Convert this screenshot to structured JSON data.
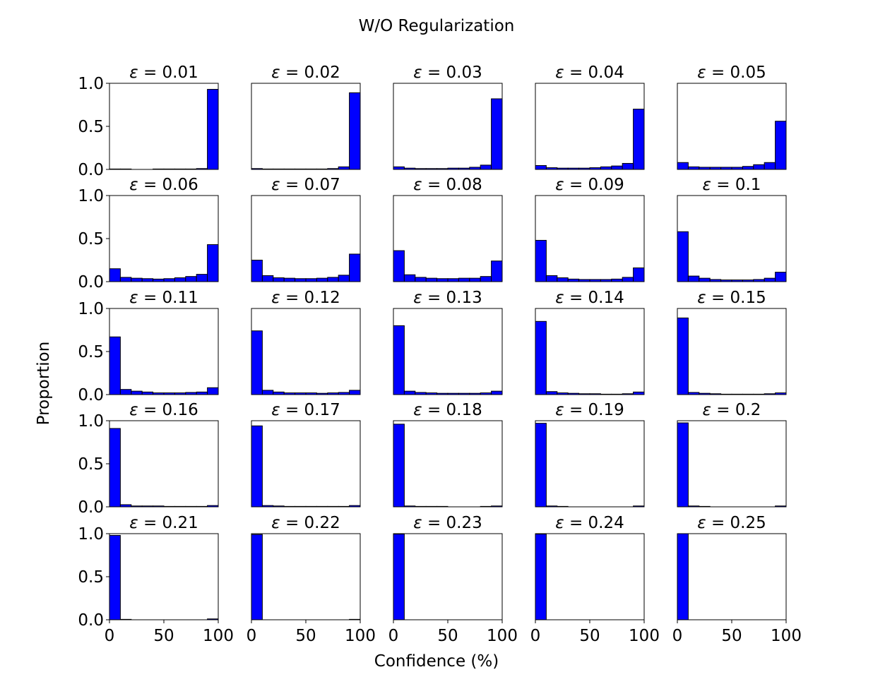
{
  "chart_data": {
    "type": "bar",
    "suptitle": "W/O Regularization",
    "xlabel": "Confidence (%)",
    "ylabel": "Proportion",
    "xlim": [
      0,
      100
    ],
    "ylim": [
      0,
      1.0
    ],
    "x_ticks": [
      0,
      50,
      100
    ],
    "y_ticks": [
      "0.0",
      "0.5",
      "1.0"
    ],
    "bin_width": 10,
    "bins": [
      "0-10",
      "10-20",
      "20-30",
      "30-40",
      "40-50",
      "50-60",
      "60-70",
      "70-80",
      "80-90",
      "90-100"
    ],
    "bar_color": "#0000ff",
    "edge_color": "#000000",
    "panels": [
      {
        "eps": "0.01",
        "values": [
          0.005,
          0.005,
          0.0,
          0.0,
          0.005,
          0.005,
          0.005,
          0.005,
          0.01,
          0.93
        ]
      },
      {
        "eps": "0.02",
        "values": [
          0.01,
          0.005,
          0.005,
          0.005,
          0.005,
          0.005,
          0.005,
          0.01,
          0.03,
          0.89
        ]
      },
      {
        "eps": "0.03",
        "values": [
          0.03,
          0.015,
          0.01,
          0.01,
          0.01,
          0.015,
          0.015,
          0.025,
          0.05,
          0.82
        ]
      },
      {
        "eps": "0.04",
        "values": [
          0.045,
          0.02,
          0.015,
          0.015,
          0.015,
          0.02,
          0.03,
          0.04,
          0.07,
          0.7
        ]
      },
      {
        "eps": "0.05",
        "values": [
          0.08,
          0.03,
          0.025,
          0.025,
          0.025,
          0.025,
          0.035,
          0.055,
          0.08,
          0.56
        ]
      },
      {
        "eps": "0.06",
        "values": [
          0.15,
          0.05,
          0.04,
          0.035,
          0.03,
          0.035,
          0.045,
          0.06,
          0.085,
          0.43
        ]
      },
      {
        "eps": "0.07",
        "values": [
          0.25,
          0.07,
          0.045,
          0.04,
          0.035,
          0.035,
          0.04,
          0.05,
          0.075,
          0.32
        ]
      },
      {
        "eps": "0.08",
        "values": [
          0.36,
          0.08,
          0.05,
          0.04,
          0.035,
          0.035,
          0.04,
          0.04,
          0.06,
          0.24
        ]
      },
      {
        "eps": "0.09",
        "values": [
          0.48,
          0.07,
          0.045,
          0.03,
          0.025,
          0.025,
          0.025,
          0.03,
          0.05,
          0.16
        ]
      },
      {
        "eps": "0.1",
        "values": [
          0.58,
          0.065,
          0.04,
          0.025,
          0.02,
          0.02,
          0.02,
          0.025,
          0.04,
          0.11
        ]
      },
      {
        "eps": "0.11",
        "values": [
          0.67,
          0.06,
          0.04,
          0.03,
          0.02,
          0.02,
          0.02,
          0.025,
          0.03,
          0.08
        ]
      },
      {
        "eps": "0.12",
        "values": [
          0.74,
          0.05,
          0.03,
          0.02,
          0.02,
          0.02,
          0.015,
          0.02,
          0.025,
          0.05
        ]
      },
      {
        "eps": "0.13",
        "values": [
          0.8,
          0.04,
          0.025,
          0.02,
          0.015,
          0.015,
          0.015,
          0.015,
          0.02,
          0.04
        ]
      },
      {
        "eps": "0.14",
        "values": [
          0.85,
          0.035,
          0.02,
          0.015,
          0.01,
          0.01,
          0.005,
          0.005,
          0.01,
          0.03
        ]
      },
      {
        "eps": "0.15",
        "values": [
          0.89,
          0.025,
          0.015,
          0.01,
          0.005,
          0.005,
          0.005,
          0.005,
          0.01,
          0.02
        ]
      },
      {
        "eps": "0.16",
        "values": [
          0.91,
          0.025,
          0.01,
          0.01,
          0.01,
          0.005,
          0.005,
          0.005,
          0.005,
          0.015
        ]
      },
      {
        "eps": "0.17",
        "values": [
          0.94,
          0.015,
          0.01,
          0.005,
          0.005,
          0.005,
          0.005,
          0.005,
          0.005,
          0.015
        ]
      },
      {
        "eps": "0.18",
        "values": [
          0.96,
          0.01,
          0.005,
          0.005,
          0.005,
          0.0,
          0.0,
          0.0,
          0.005,
          0.01
        ]
      },
      {
        "eps": "0.19",
        "values": [
          0.97,
          0.01,
          0.005,
          0.0,
          0.0,
          0.0,
          0.0,
          0.0,
          0.0,
          0.01
        ]
      },
      {
        "eps": "0.2",
        "values": [
          0.975,
          0.01,
          0.005,
          0.0,
          0.0,
          0.0,
          0.0,
          0.0,
          0.0,
          0.01
        ]
      },
      {
        "eps": "0.21",
        "values": [
          0.98,
          0.005,
          0.0,
          0.0,
          0.0,
          0.0,
          0.0,
          0.0,
          0.0,
          0.01
        ]
      },
      {
        "eps": "0.22",
        "values": [
          0.99,
          0.0,
          0.0,
          0.0,
          0.0,
          0.0,
          0.0,
          0.0,
          0.0,
          0.005
        ]
      },
      {
        "eps": "0.23",
        "values": [
          0.995,
          0.0,
          0.0,
          0.0,
          0.0,
          0.0,
          0.0,
          0.0,
          0.0,
          0.0
        ]
      },
      {
        "eps": "0.24",
        "values": [
          0.995,
          0.0,
          0.0,
          0.0,
          0.0,
          0.0,
          0.0,
          0.0,
          0.0,
          0.0
        ]
      },
      {
        "eps": "0.25",
        "values": [
          1.0,
          0.0,
          0.0,
          0.0,
          0.0,
          0.0,
          0.0,
          0.0,
          0.0,
          0.0
        ]
      }
    ]
  }
}
